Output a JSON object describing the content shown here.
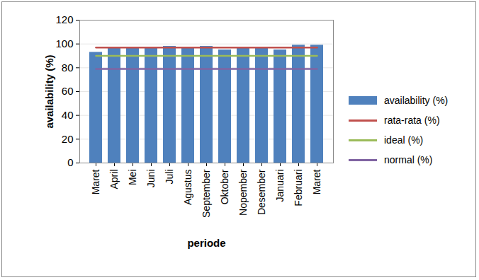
{
  "chart_data": {
    "type": "bar",
    "x_label": "periode",
    "y_label": "availability (%)",
    "categories": [
      "Maret",
      "April",
      "Mei",
      "Juni",
      "Juli",
      "Agustus",
      "September",
      "Oktober",
      "Nopember",
      "Desember",
      "Januari",
      "Februari",
      "Maret"
    ],
    "series": [
      {
        "name": "availability (%)",
        "type": "bar",
        "color": "#4f81bd",
        "values": [
          93,
          97,
          97,
          97,
          98,
          97,
          98,
          95,
          97,
          97,
          95,
          99,
          99
        ]
      },
      {
        "name": "rata-rata (%)",
        "type": "line",
        "color": "#c0504d",
        "values": [
          97,
          97,
          97,
          97,
          97,
          97,
          97,
          97,
          97,
          97,
          97,
          97,
          97
        ]
      },
      {
        "name": "ideal (%)",
        "type": "line",
        "color": "#9bbb59",
        "values": [
          90,
          90,
          90,
          90,
          90,
          90,
          90,
          90,
          90,
          90,
          90,
          90,
          90
        ]
      },
      {
        "name": "normal (%)",
        "type": "line",
        "color": "#8064a2",
        "values": [
          79,
          79,
          79,
          79,
          79,
          79,
          79,
          79,
          79,
          79,
          79,
          79,
          79
        ]
      }
    ],
    "ylim": [
      0,
      120
    ],
    "yticks": [
      0,
      20,
      40,
      60,
      80,
      100,
      120
    ],
    "grid": true,
    "legend": "right"
  }
}
